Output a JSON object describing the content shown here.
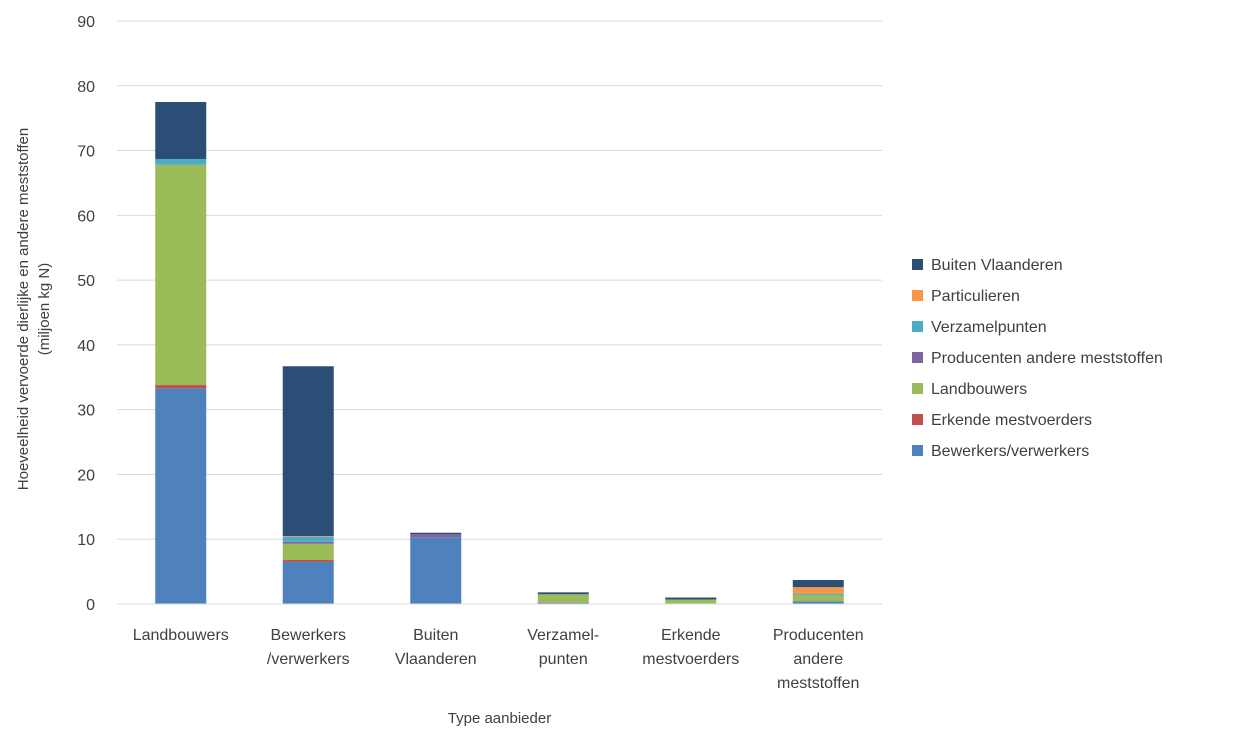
{
  "chart_data": {
    "type": "bar",
    "stacked": true,
    "title": "",
    "xlabel": "Type aanbieder",
    "ylabel_lines": [
      "Hoeveelheid vervoerde dierlijke en andere meststoffen",
      "(miljoen kg N)"
    ],
    "ylim": [
      0,
      90
    ],
    "yticks": [
      0,
      10,
      20,
      30,
      40,
      50,
      60,
      70,
      80,
      90
    ],
    "grid": true,
    "legend_position": "right",
    "categories": [
      [
        "Landbouwers"
      ],
      [
        "Bewerkers",
        "/verwerkers"
      ],
      [
        "Buiten",
        "Vlaanderen"
      ],
      [
        "Verzamel-",
        "punten"
      ],
      [
        "Erkende",
        "mestvoerders"
      ],
      [
        "Producenten",
        "andere",
        "meststoffen"
      ]
    ],
    "series": [
      {
        "name": "Bewerkers/verwerkers",
        "color": "#4f81bd",
        "values": [
          33.3,
          6.5,
          10.3,
          0.2,
          0.1,
          0.4
        ]
      },
      {
        "name": "Erkende mestvoerders",
        "color": "#c0504d",
        "values": [
          0.5,
          0.3,
          0.0,
          0.0,
          0.0,
          0.0
        ]
      },
      {
        "name": "Landbouwers",
        "color": "#9bbb59",
        "values": [
          34.0,
          2.5,
          0.0,
          1.3,
          0.6,
          1.0
        ]
      },
      {
        "name": "Producenten andere meststoffen",
        "color": "#8064a2",
        "values": [
          0.0,
          0.3,
          0.5,
          0.0,
          0.0,
          0.0
        ]
      },
      {
        "name": "Verzamelpunten",
        "color": "#4bacc6",
        "values": [
          0.9,
          0.8,
          0.0,
          0.0,
          0.0,
          0.2
        ]
      },
      {
        "name": "Particulieren",
        "color": "#f79646",
        "values": [
          0.0,
          0.1,
          0.0,
          0.0,
          0.0,
          1.0
        ]
      },
      {
        "name": "Buiten Vlaanderen",
        "color": "#2c4d75",
        "values": [
          8.8,
          26.2,
          0.2,
          0.3,
          0.3,
          1.1
        ]
      }
    ],
    "legend_order": [
      6,
      5,
      4,
      3,
      2,
      1,
      0
    ]
  }
}
